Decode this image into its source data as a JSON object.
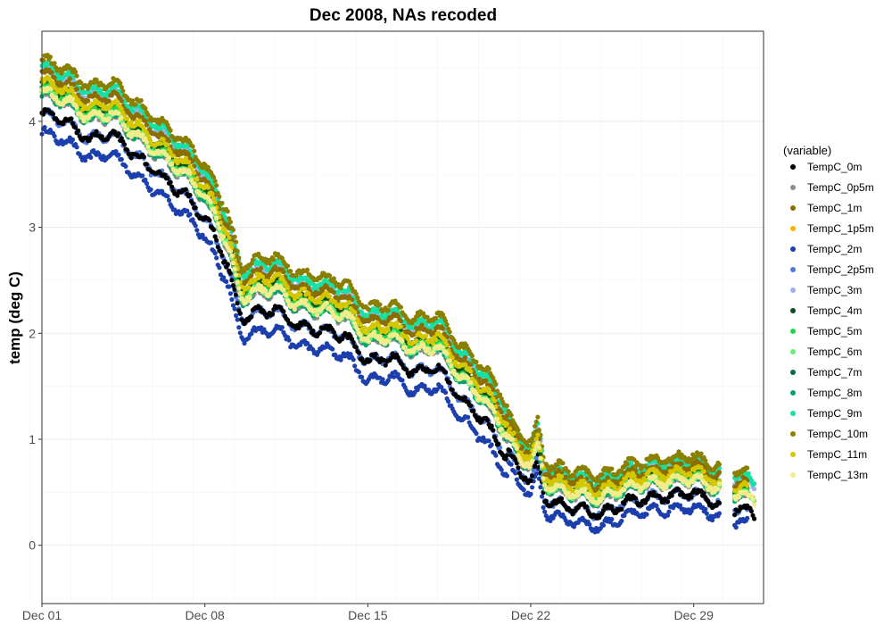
{
  "chart_data": {
    "type": "scatter",
    "title": "Dec 2008, NAs recoded",
    "xlabel": "",
    "ylabel": "temp (deg C)",
    "x_unit": "days",
    "xlim": [
      0,
      31
    ],
    "ylim": [
      -0.55,
      4.85
    ],
    "x_ticks": [
      {
        "value": 0,
        "label": "Dec 01"
      },
      {
        "value": 7,
        "label": "Dec 08"
      },
      {
        "value": 14,
        "label": "Dec 15"
      },
      {
        "value": 21,
        "label": "Dec 22"
      },
      {
        "value": 28,
        "label": "Dec 29"
      }
    ],
    "y_ticks": [
      0,
      1,
      2,
      3,
      4
    ],
    "grid": true,
    "legend": {
      "title": "(variable)",
      "position": "right",
      "items": [
        {
          "name": "TempC_0m",
          "color": "#000000"
        },
        {
          "name": "TempC_0p5m",
          "color": "#8c8c8c"
        },
        {
          "name": "TempC_1m",
          "color": "#8b6d00"
        },
        {
          "name": "TempC_1p5m",
          "color": "#f7b500"
        },
        {
          "name": "TempC_2m",
          "color": "#1c3fae"
        },
        {
          "name": "TempC_2p5m",
          "color": "#4c78e0"
        },
        {
          "name": "TempC_3m",
          "color": "#9fb0ec"
        },
        {
          "name": "TempC_4m",
          "color": "#0c4d1f"
        },
        {
          "name": "TempC_5m",
          "color": "#1ed64b"
        },
        {
          "name": "TempC_6m",
          "color": "#68ef7a"
        },
        {
          "name": "TempC_7m",
          "color": "#0a6b45"
        },
        {
          "name": "TempC_8m",
          "color": "#08a070"
        },
        {
          "name": "TempC_9m",
          "color": "#16e0a4"
        },
        {
          "name": "TempC_10m",
          "color": "#8a7f00"
        },
        {
          "name": "TempC_11m",
          "color": "#d4c700"
        },
        {
          "name": "TempC_13m",
          "color": "#f4ec8a"
        }
      ]
    },
    "base_profile": [
      [
        0.0,
        4.3
      ],
      [
        1.0,
        4.22
      ],
      [
        2.0,
        4.05
      ],
      [
        3.0,
        4.1
      ],
      [
        4.0,
        3.9
      ],
      [
        5.0,
        3.72
      ],
      [
        6.0,
        3.55
      ],
      [
        6.5,
        3.45
      ],
      [
        7.0,
        3.3
      ],
      [
        7.5,
        3.1
      ],
      [
        8.0,
        2.85
      ],
      [
        8.3,
        2.55
      ],
      [
        8.6,
        2.35
      ],
      [
        9.0,
        2.4
      ],
      [
        10.0,
        2.45
      ],
      [
        11.0,
        2.28
      ],
      [
        12.0,
        2.25
      ],
      [
        13.0,
        2.2
      ],
      [
        14.0,
        1.95
      ],
      [
        15.0,
        2.0
      ],
      [
        16.0,
        1.85
      ],
      [
        17.0,
        1.9
      ],
      [
        18.0,
        1.6
      ],
      [
        19.0,
        1.4
      ],
      [
        20.0,
        1.05
      ],
      [
        20.5,
        0.85
      ],
      [
        21.0,
        0.78
      ],
      [
        21.3,
        0.95
      ],
      [
        21.6,
        0.6
      ],
      [
        22.0,
        0.55
      ],
      [
        23.0,
        0.5
      ],
      [
        24.0,
        0.45
      ],
      [
        25.0,
        0.55
      ],
      [
        26.0,
        0.6
      ],
      [
        27.0,
        0.62
      ],
      [
        28.0,
        0.65
      ],
      [
        29.0,
        0.55
      ],
      [
        29.5,
        0.52
      ],
      [
        30.0,
        0.5
      ],
      [
        30.5,
        0.45
      ]
    ],
    "series_offsets": {
      "TempC_0m": -0.22,
      "TempC_0p5m": -0.05,
      "TempC_1m": 0.15,
      "TempC_1p5m": 0.0,
      "TempC_2m": -0.4,
      "TempC_2p5m": -0.22,
      "TempC_3m": 0.18,
      "TempC_4m": 0.03,
      "TempC_5m": 0.0,
      "TempC_6m": -0.02,
      "TempC_7m": 0.05,
      "TempC_8m": -0.04,
      "TempC_9m": 0.22,
      "TempC_10m": 0.28,
      "TempC_11m": 0.08,
      "TempC_13m": -0.02
    }
  }
}
